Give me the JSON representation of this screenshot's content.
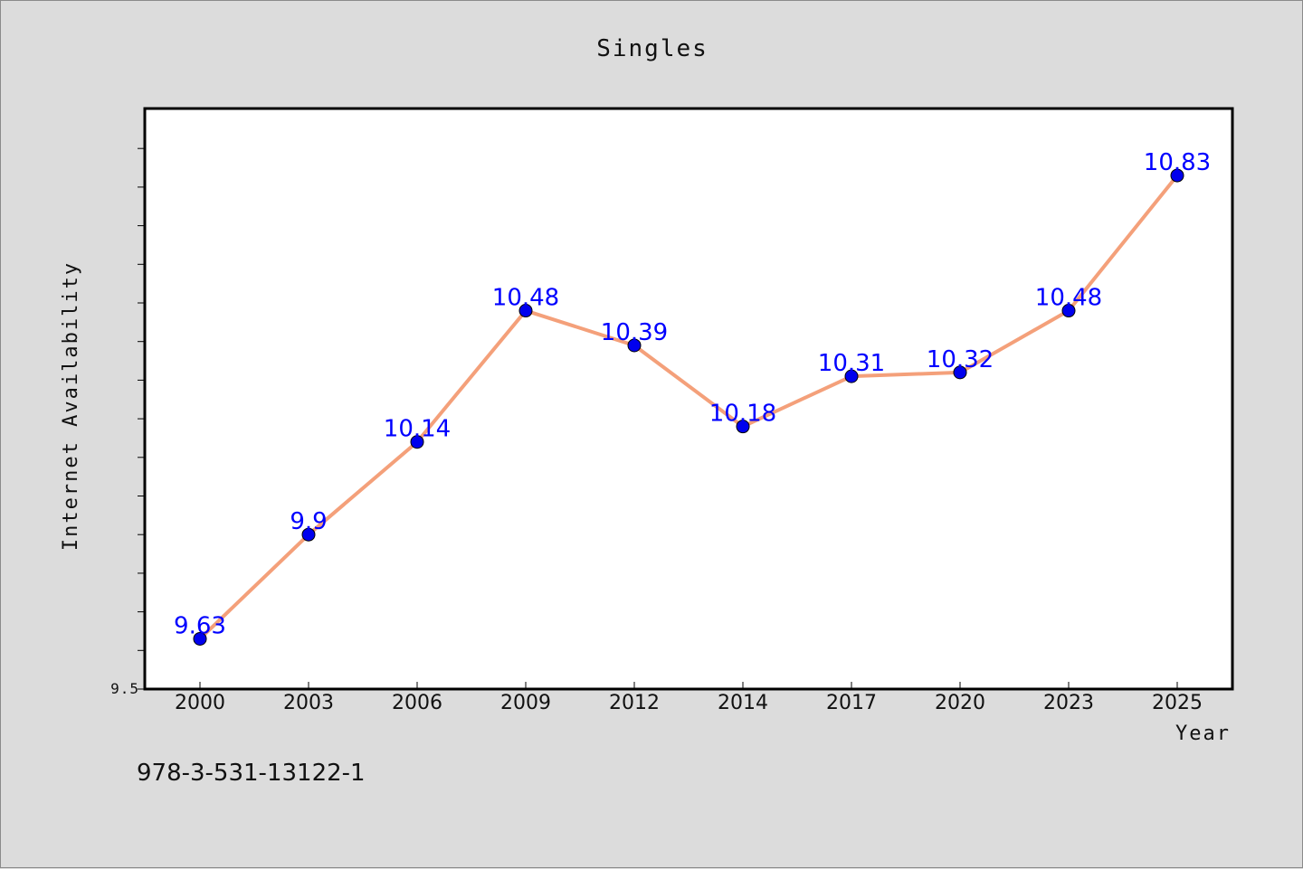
{
  "chart_data": {
    "type": "line",
    "title": "Singles",
    "xlabel": "Year",
    "ylabel": "Internet Availability",
    "categories": [
      "2000",
      "2003",
      "2006",
      "2009",
      "2012",
      "2014",
      "2017",
      "2020",
      "2023",
      "2025"
    ],
    "series": [
      {
        "values": [
          9.63,
          9.9,
          10.14,
          10.48,
          10.39,
          10.18,
          10.31,
          10.32,
          10.48,
          10.83
        ],
        "labels": [
          "9.63",
          "9.9",
          "10.14",
          "10.48",
          "10.39",
          "10.18",
          "10.31",
          "10.32",
          "10.48",
          "10.83"
        ],
        "line_color": "#f4a07a",
        "marker_color": "#0000ee"
      }
    ],
    "ylim": [
      9.5,
      11.0
    ],
    "y_tick_labels": [
      "9.5"
    ],
    "grid": false,
    "legend": "none"
  },
  "footer": {
    "isbn": "978-3-531-13122-1"
  },
  "colors": {
    "background": "#dcdcdc",
    "plot_background": "#ffffff",
    "data_label": "#0000ff"
  }
}
